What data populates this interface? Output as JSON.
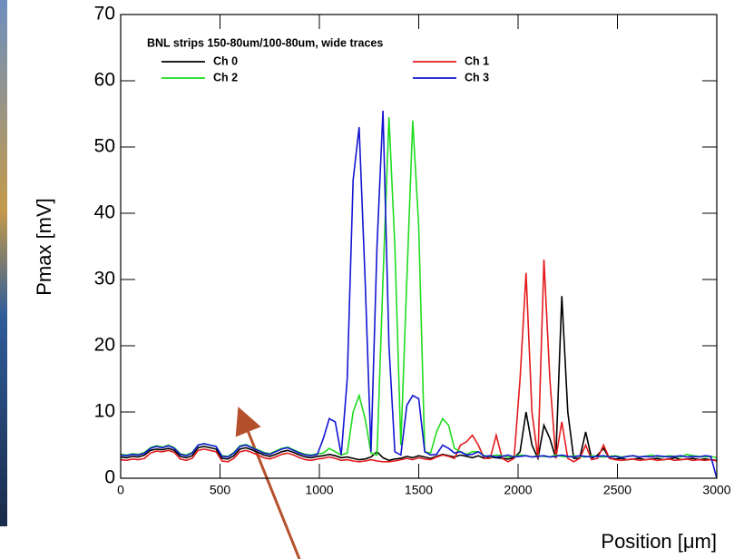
{
  "chart_data": {
    "type": "line",
    "legend_title": "BNL strips 150-80um/100-80um, wide traces",
    "xlabel": "Position [μm]",
    "ylabel": "Pmax [mV]",
    "x": [
      0,
      30,
      60,
      90,
      120,
      150,
      180,
      210,
      240,
      270,
      300,
      330,
      360,
      390,
      420,
      450,
      480,
      510,
      540,
      570,
      600,
      630,
      660,
      690,
      720,
      750,
      780,
      810,
      840,
      870,
      900,
      930,
      960,
      990,
      1020,
      1050,
      1080,
      1110,
      1140,
      1170,
      1200,
      1230,
      1260,
      1290,
      1320,
      1350,
      1380,
      1410,
      1440,
      1470,
      1500,
      1530,
      1560,
      1590,
      1620,
      1650,
      1680,
      1710,
      1740,
      1770,
      1800,
      1830,
      1860,
      1890,
      1920,
      1950,
      1980,
      2010,
      2040,
      2070,
      2100,
      2130,
      2160,
      2190,
      2220,
      2250,
      2280,
      2310,
      2340,
      2370,
      2400,
      2430,
      2460,
      2490,
      2520,
      2550,
      2580,
      2610,
      2640,
      2670,
      2700,
      2730,
      2760,
      2790,
      2820,
      2850,
      2880,
      2910,
      2940,
      2970,
      3000
    ],
    "series": [
      {
        "name": "Ch 0",
        "color": "#000000",
        "values": [
          3.2,
          3.1,
          3.3,
          3.2,
          3.5,
          4.2,
          4.4,
          4.3,
          4.5,
          4.2,
          3.3,
          3.1,
          3.4,
          4.6,
          4.8,
          4.6,
          4.4,
          3.0,
          2.9,
          3.4,
          4.4,
          4.6,
          4.3,
          3.9,
          3.5,
          3.3,
          3.6,
          4.0,
          4.2,
          3.9,
          3.5,
          3.2,
          3.1,
          3.3,
          3.4,
          3.6,
          3.4,
          3.1,
          3.2,
          3.0,
          2.8,
          2.9,
          3.2,
          4.0,
          3.1,
          2.7,
          2.9,
          3.0,
          3.3,
          3.1,
          3.4,
          3.2,
          3.0,
          3.3,
          3.6,
          3.4,
          3.2,
          3.5,
          3.3,
          3.1,
          3.4,
          3.0,
          3.2,
          3.1,
          3.0,
          2.9,
          3.1,
          4.0,
          10,
          5,
          3,
          8,
          6,
          3,
          27.5,
          10,
          3,
          3,
          7,
          3,
          3.5,
          4.5,
          3,
          2.9,
          3.0,
          2.8,
          2.9,
          3.0,
          2.8,
          2.9,
          3.0,
          2.8,
          2.9,
          3.1,
          2.8,
          2.9,
          3.0,
          2.8,
          2.9,
          2.8,
          2.7
        ]
      },
      {
        "name": "Ch 1",
        "color": "#e41a1c",
        "values": [
          2.8,
          2.7,
          2.9,
          2.8,
          3.0,
          3.8,
          4.1,
          4.0,
          4.2,
          3.9,
          2.9,
          2.7,
          3.0,
          4.2,
          4.4,
          4.2,
          4.0,
          2.6,
          2.5,
          3.0,
          4.0,
          4.2,
          3.9,
          3.5,
          3.1,
          2.9,
          3.2,
          3.6,
          3.8,
          3.5,
          3.1,
          2.8,
          2.7,
          2.9,
          3.0,
          3.2,
          3.0,
          2.7,
          2.8,
          2.6,
          2.5,
          2.6,
          2.8,
          2.6,
          2.5,
          2.5,
          2.6,
          2.8,
          3.0,
          2.8,
          3.1,
          2.9,
          2.8,
          3.2,
          3.5,
          3.3,
          3.0,
          5,
          5.5,
          6.5,
          5,
          3,
          3,
          6.5,
          3,
          2.5,
          3,
          15,
          31,
          10,
          3,
          33,
          15,
          3,
          8.5,
          3,
          2.5,
          3,
          5,
          2.8,
          3,
          5,
          3,
          2.8,
          2.7,
          2.8,
          2.9,
          2.7,
          2.8,
          2.9,
          2.7,
          2.8,
          2.9,
          2.7,
          2.8,
          2.9,
          2.7,
          2.8,
          2.7,
          2.8,
          2.6
        ]
      },
      {
        "name": "Ch 2",
        "color": "#1fdc1f",
        "values": [
          3.6,
          3.5,
          3.7,
          3.6,
          3.9,
          4.6,
          4.9,
          4.7,
          5.0,
          4.6,
          3.7,
          3.5,
          3.9,
          5.0,
          5.2,
          5.0,
          4.8,
          3.4,
          3.3,
          3.9,
          4.9,
          5.1,
          4.7,
          4.3,
          3.9,
          3.7,
          4.1,
          4.5,
          4.7,
          4.3,
          3.9,
          3.6,
          3.5,
          3.7,
          3.8,
          4.5,
          4.0,
          3.5,
          3.8,
          10,
          12.5,
          9,
          3.8,
          3.5,
          30,
          54.5,
          35,
          5,
          30,
          54,
          38,
          4,
          3.8,
          7,
          9,
          8,
          4.5,
          4,
          3.6,
          4,
          4,
          3.4,
          3.3,
          3.5,
          3.4,
          3.2,
          3.3,
          3.5,
          3.4,
          3.2,
          3.4,
          3.3,
          3.2,
          3.5,
          3.3,
          3.2,
          3.4,
          3.3,
          3.2,
          3.4,
          3.3,
          3.2,
          3.3,
          3.4,
          3.2,
          3.3,
          3.4,
          3.2,
          3.3,
          3.5,
          3.3,
          3.2,
          3.4,
          3.3,
          3.2,
          3.6,
          3.4,
          3.3,
          3.2,
          3.3,
          3.1
        ]
      },
      {
        "name": "Ch 3",
        "color": "#1414d2",
        "values": [
          3.5,
          3.4,
          3.6,
          3.5,
          3.8,
          4.5,
          4.8,
          4.6,
          4.9,
          4.5,
          3.6,
          3.4,
          3.8,
          5.0,
          5.2,
          5.0,
          4.8,
          3.3,
          3.2,
          3.8,
          4.8,
          5.0,
          4.6,
          4.2,
          3.8,
          3.6,
          4.0,
          4.4,
          4.6,
          4.2,
          3.8,
          3.5,
          3.4,
          3.6,
          6,
          9,
          8.5,
          3.5,
          15,
          45,
          53,
          30,
          4,
          35,
          55.5,
          20,
          4,
          3.5,
          11,
          12.5,
          12,
          4,
          3.5,
          3.6,
          5,
          4.5,
          3.8,
          4,
          3.5,
          3.6,
          4,
          3.3,
          3.4,
          3.2,
          3.3,
          3.5,
          3.2,
          3.3,
          3.4,
          3.2,
          3.3,
          3.4,
          3.2,
          3.3,
          3.5,
          3.3,
          3.2,
          3.4,
          3.3,
          3.2,
          3.3,
          3.4,
          3.2,
          3.3,
          3.1,
          3.3,
          3.4,
          3.2,
          3.3,
          3.2,
          3.4,
          3.3,
          3.2,
          3.3,
          3.4,
          3.2,
          3.3,
          3.2,
          3.4,
          3.3,
          0
        ]
      }
    ],
    "xlim": [
      0,
      3000
    ],
    "xticks": [
      0,
      500,
      1000,
      1500,
      2000,
      2500,
      3000
    ],
    "ylim": [
      0,
      70
    ],
    "yticks": [
      0,
      10,
      20,
      30,
      40,
      50,
      60,
      70
    ]
  }
}
